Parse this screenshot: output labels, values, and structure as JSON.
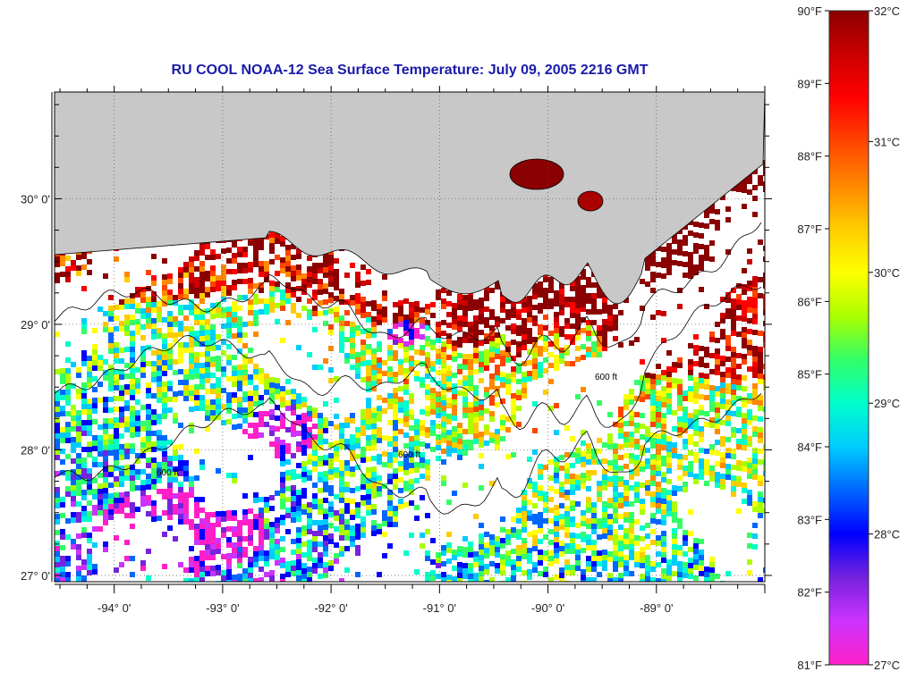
{
  "title": "RU COOL  NOAA-12  Sea Surface Temperature:  July 09, 2005 2216 GMT",
  "map": {
    "lon_range": [
      -94.55,
      -88.0
    ],
    "lat_range": [
      26.95,
      30.85
    ],
    "lon_ticks": [
      {
        "value": -94,
        "label": "-94° 0'"
      },
      {
        "value": -93,
        "label": "-93° 0'"
      },
      {
        "value": -92,
        "label": "-92° 0'"
      },
      {
        "value": -91,
        "label": "-91° 0'"
      },
      {
        "value": -90,
        "label": "-90° 0'"
      },
      {
        "value": -89,
        "label": "-89° 0'"
      }
    ],
    "lat_ticks": [
      {
        "value": 27,
        "label": "27° 0'"
      },
      {
        "value": 28,
        "label": "28° 0'"
      },
      {
        "value": 29,
        "label": "29° 0'"
      },
      {
        "value": 30,
        "label": "30° 0'"
      }
    ],
    "contour_label": "600 ft",
    "colors": {
      "land": "#c8c8c8",
      "ocean_no_data": "#ffffff",
      "coastline": "#000000"
    }
  },
  "colorbar": {
    "fahrenheit": [
      "90°F",
      "89°F",
      "88°F",
      "87°F",
      "86°F",
      "85°F",
      "84°F",
      "83°F",
      "82°F",
      "81°F"
    ],
    "celsius": [
      "32°C",
      "31°C",
      "30°C",
      "29°C",
      "28°C",
      "27°C"
    ],
    "range_f": [
      81,
      90
    ],
    "range_c": [
      27,
      32
    ],
    "stops": [
      "#ff1fc8",
      "#cc33ff",
      "#7722dd",
      "#0000ff",
      "#0066ff",
      "#00ccff",
      "#00ffcc",
      "#33ff66",
      "#aaff00",
      "#ffff00",
      "#ffcc00",
      "#ff8800",
      "#ff4400",
      "#ff0000",
      "#cc0000",
      "#8b0000"
    ]
  }
}
